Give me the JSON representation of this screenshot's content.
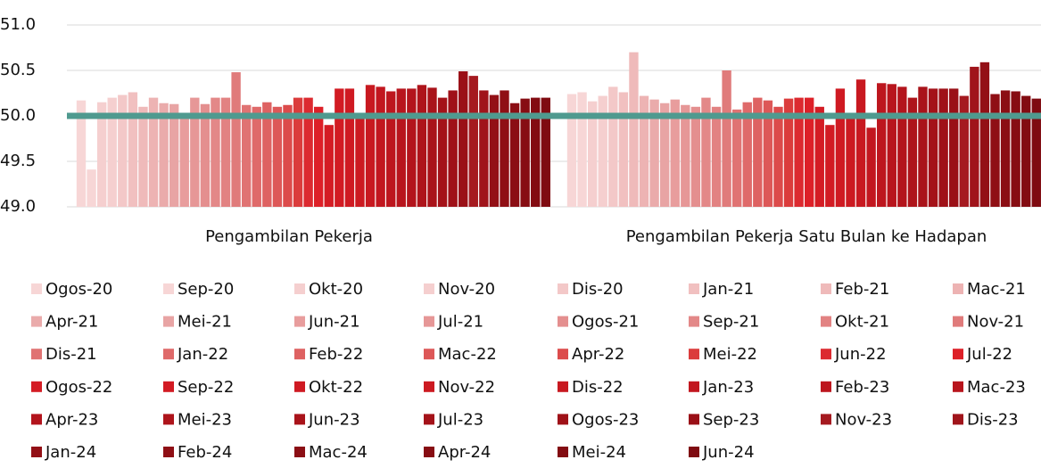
{
  "chart_data": {
    "type": "bar",
    "categories": [
      "Pengambilan Pekerja",
      "Pengambilan Pekerja Satu Bulan ke Hadapan"
    ],
    "ylim": [
      49,
      51
    ],
    "yticks": [
      {
        "value": 49,
        "label": "49.0"
      },
      {
        "value": 49.5,
        "label": "49.5"
      },
      {
        "value": 50,
        "label": "50.0"
      },
      {
        "value": 50.5,
        "label": "50.5"
      },
      {
        "value": 51,
        "label": "51.0"
      }
    ],
    "grid": true,
    "reference_line": {
      "value": 50,
      "color": "#4f9a8f"
    },
    "series": [
      {
        "name": "Ogos-20",
        "color": "#f7d6d6",
        "values": [
          50.17,
          50.24
        ]
      },
      {
        "name": "Sep-20",
        "color": "#f7d6d6",
        "values": [
          49.41,
          50.26
        ]
      },
      {
        "name": "Okt-20",
        "color": "#f5cfcf",
        "values": [
          50.15,
          50.16
        ]
      },
      {
        "name": "Nov-20",
        "color": "#f5cfcf",
        "values": [
          50.2,
          50.22
        ]
      },
      {
        "name": "Dis-20",
        "color": "#f3c8c8",
        "values": [
          50.23,
          50.32
        ]
      },
      {
        "name": "Jan-21",
        "color": "#f1c0c0",
        "values": [
          50.26,
          50.26
        ]
      },
      {
        "name": "Feb-21",
        "color": "#efbaba",
        "values": [
          50.1,
          50.7
        ]
      },
      {
        "name": "Mac-21",
        "color": "#edb3b3",
        "values": [
          50.2,
          50.22
        ]
      },
      {
        "name": "Apr-21",
        "color": "#eaabab",
        "values": [
          50.14,
          50.18
        ]
      },
      {
        "name": "Mei-21",
        "color": "#e8a4a4",
        "values": [
          50.13,
          50.14
        ]
      },
      {
        "name": "Jun-21",
        "color": "#e89d9d",
        "values": [
          50.0,
          50.18
        ]
      },
      {
        "name": "Jul-21",
        "color": "#e69797",
        "values": [
          50.2,
          50.12
        ]
      },
      {
        "name": "Ogos-21",
        "color": "#e48f8f",
        "values": [
          50.13,
          50.1
        ]
      },
      {
        "name": "Sep-21",
        "color": "#e38888",
        "values": [
          50.2,
          50.2
        ]
      },
      {
        "name": "Okt-21",
        "color": "#e28282",
        "values": [
          50.2,
          50.1
        ]
      },
      {
        "name": "Nov-21",
        "color": "#e07b7b",
        "values": [
          50.48,
          50.5
        ]
      },
      {
        "name": "Dis-21",
        "color": "#e07373",
        "values": [
          50.12,
          50.07
        ]
      },
      {
        "name": "Jan-22",
        "color": "#df6a6a",
        "values": [
          50.1,
          50.15
        ]
      },
      {
        "name": "Feb-22",
        "color": "#de6262",
        "values": [
          50.15,
          50.2
        ]
      },
      {
        "name": "Mac-22",
        "color": "#dd5858",
        "values": [
          50.1,
          50.17
        ]
      },
      {
        "name": "Apr-22",
        "color": "#dc4b4b",
        "values": [
          50.12,
          50.1
        ]
      },
      {
        "name": "Mei-22",
        "color": "#db3c3c",
        "values": [
          50.2,
          50.19
        ]
      },
      {
        "name": "Jun-22",
        "color": "#dc2a30",
        "values": [
          50.2,
          50.2
        ]
      },
      {
        "name": "Jul-22",
        "color": "#dd2028",
        "values": [
          50.1,
          50.2
        ]
      },
      {
        "name": "Ogos-22",
        "color": "#d41c24",
        "values": [
          49.9,
          50.1
        ]
      },
      {
        "name": "Sep-22",
        "color": "#d21b23",
        "values": [
          50.3,
          49.9
        ]
      },
      {
        "name": "Okt-22",
        "color": "#cf1a22",
        "values": [
          50.3,
          50.3
        ]
      },
      {
        "name": "Nov-22",
        "color": "#cc1a21",
        "values": [
          50.0,
          50.0
        ]
      },
      {
        "name": "Dis-22",
        "color": "#c81920",
        "values": [
          50.34,
          50.4
        ]
      },
      {
        "name": "Jan-23",
        "color": "#c2171f",
        "values": [
          50.32,
          49.87
        ]
      },
      {
        "name": "Feb-23",
        "color": "#bd161e",
        "values": [
          50.27,
          50.36
        ]
      },
      {
        "name": "Mac-23",
        "color": "#b8151d",
        "values": [
          50.3,
          50.35
        ]
      },
      {
        "name": "Apr-23",
        "color": "#b3141c",
        "values": [
          50.3,
          50.32
        ]
      },
      {
        "name": "Mei-23",
        "color": "#ae141b",
        "values": [
          50.34,
          50.2
        ]
      },
      {
        "name": "Jun-23",
        "color": "#a9131a",
        "values": [
          50.31,
          50.32
        ]
      },
      {
        "name": "Jul-23",
        "color": "#a41219",
        "values": [
          50.2,
          50.3
        ]
      },
      {
        "name": "Ogos-23",
        "color": "#9f1118",
        "values": [
          50.28,
          50.3
        ]
      },
      {
        "name": "Sep-23",
        "color": "#9a1017",
        "values": [
          50.49,
          50.3
        ]
      },
      {
        "name": "Nov-23",
        "color": "#a51a20",
        "values": [
          50.44,
          50.22
        ]
      },
      {
        "name": "Dis-23",
        "color": "#a0141b",
        "values": [
          50.28,
          50.54
        ]
      },
      {
        "name": "Jan-24",
        "color": "#931016",
        "values": [
          50.23,
          50.59
        ]
      },
      {
        "name": "Feb-24",
        "color": "#8f0f15",
        "values": [
          50.28,
          50.24
        ]
      },
      {
        "name": "Mac-24",
        "color": "#8b0e14",
        "values": [
          50.14,
          50.28
        ]
      },
      {
        "name": "Apr-24",
        "color": "#870d13",
        "values": [
          50.19,
          50.27
        ]
      },
      {
        "name": "Mei-24",
        "color": "#830c12",
        "values": [
          50.2,
          50.22
        ]
      },
      {
        "name": "Jun-24",
        "color": "#7f0b11",
        "values": [
          50.2,
          50.19
        ]
      }
    ]
  }
}
